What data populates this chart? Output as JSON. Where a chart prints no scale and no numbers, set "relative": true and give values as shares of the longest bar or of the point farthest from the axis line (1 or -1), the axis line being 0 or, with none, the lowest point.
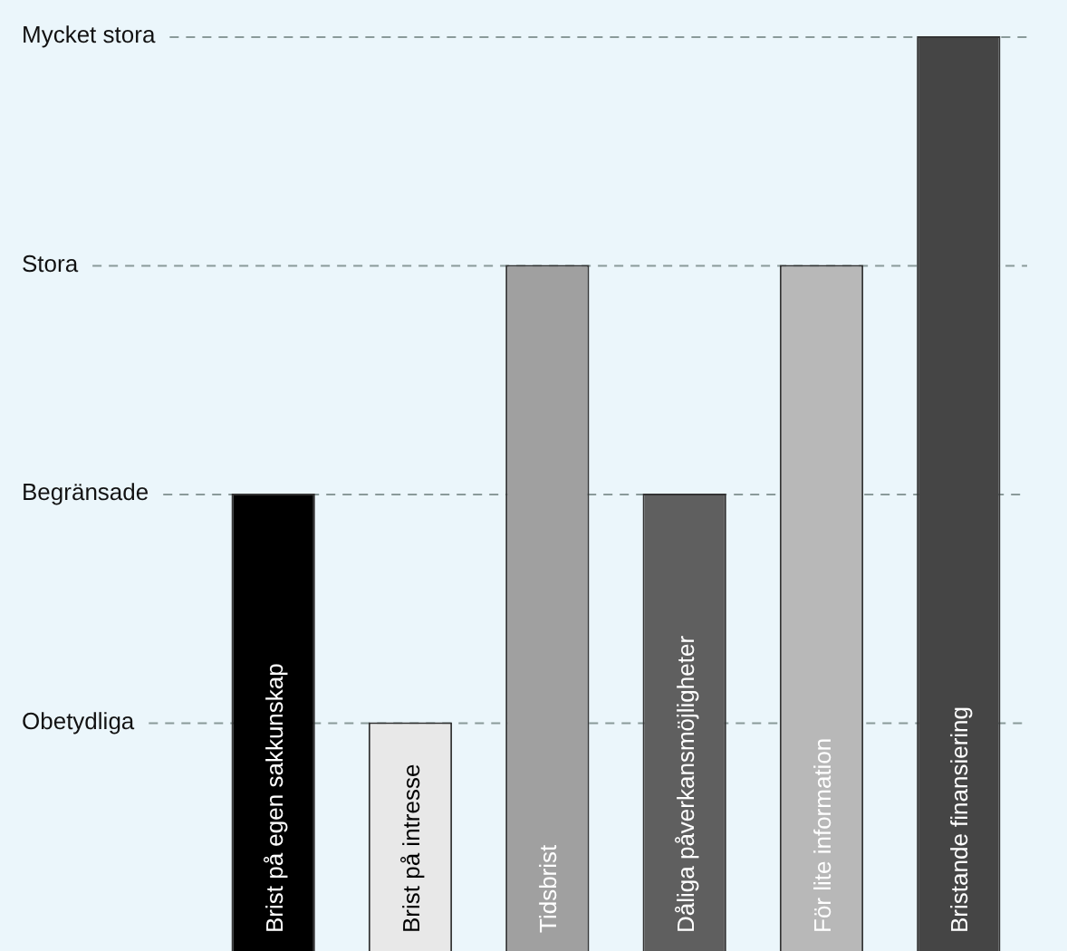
{
  "chart_data": {
    "type": "bar",
    "relative": true,
    "categories": [
      "Brist på egen sakkunskap",
      "Brist på intresse",
      "Tidsbrist",
      "Dåliga påverkansmöjligheter",
      "För lite information",
      "Bristande finansiering"
    ],
    "values": [
      0.5,
      0.25,
      0.75,
      0.5,
      0.75,
      1
    ],
    "colors": [
      "#000000",
      "#e8e8e8",
      "#a0a0a0",
      "#5f5f5f",
      "#b8b8b8",
      "#454545"
    ],
    "ref_lines": [
      {
        "axis": "y",
        "value": 0.25,
        "label": "Obetydliga",
        "color": "#8a9a9a",
        "line_style": "dashed"
      },
      {
        "axis": "y",
        "value": 0.5,
        "label": "Begränsade",
        "color": "#8a9a9a",
        "line_style": "dashed"
      },
      {
        "axis": "y",
        "value": 0.75,
        "label": "Stora",
        "color": "#8a9a9a",
        "line_style": "dashed"
      },
      {
        "axis": "y",
        "value": 1,
        "label": "Mycket stora",
        "color": "#8a9a9a",
        "line_style": "dashed"
      }
    ],
    "legend": false
  }
}
